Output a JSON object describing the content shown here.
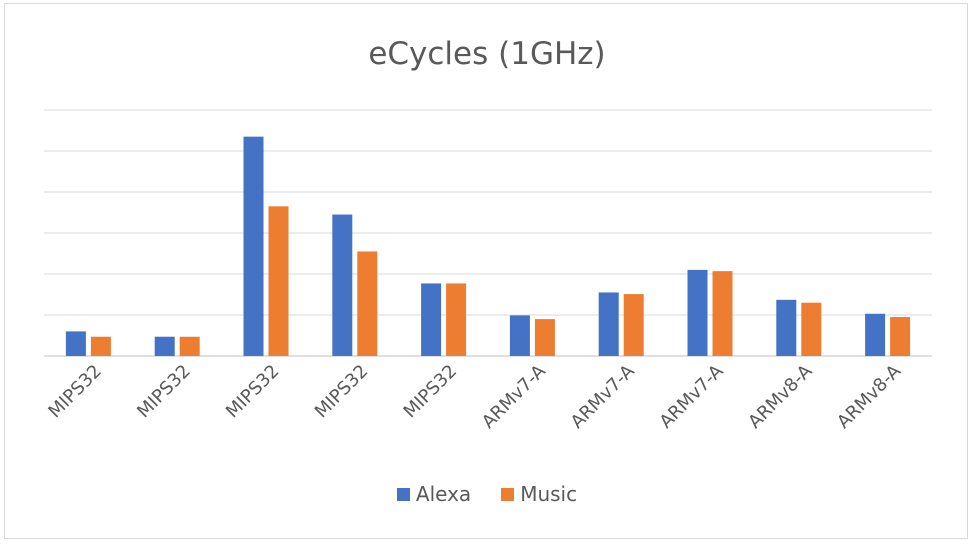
{
  "chart_data": {
    "type": "bar",
    "title": "eCycles (1GHz)",
    "categories": [
      "MIPS32",
      "MIPS32",
      "MIPS32",
      "MIPS32",
      "MIPS32",
      "ARMv7-A",
      "ARMv7-A",
      "ARMv7-A",
      "ARMv8-A",
      "ARMv8-A"
    ],
    "series": [
      {
        "name": "Alexa",
        "color": "#4472c4",
        "values": [
          0.6,
          0.47,
          5.35,
          3.45,
          1.77,
          0.99,
          1.55,
          2.1,
          1.37,
          1.03
        ]
      },
      {
        "name": "Music",
        "color": "#ed7d31",
        "values": [
          0.47,
          0.47,
          3.65,
          2.55,
          1.77,
          0.9,
          1.51,
          2.07,
          1.3,
          0.95
        ]
      }
    ],
    "ylim": [
      0,
      6
    ],
    "grid": true,
    "legend_position": "bottom",
    "xlabel": "",
    "ylabel": ""
  }
}
